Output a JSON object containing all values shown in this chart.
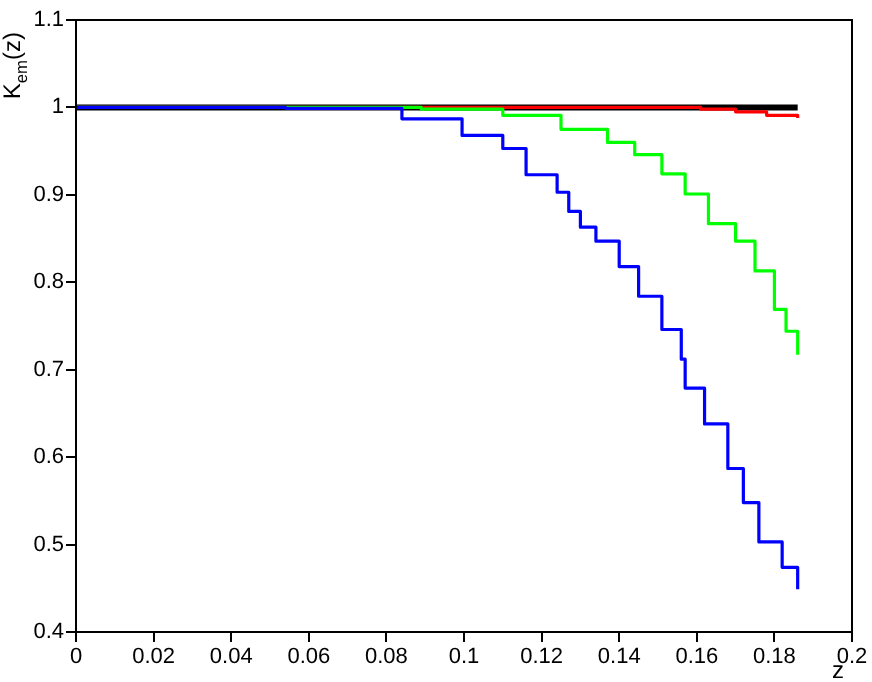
{
  "chart_data": {
    "type": "step",
    "xlabel": "z",
    "ylabel": "K$_{em}$(z)",
    "xlim": [
      0,
      0.2
    ],
    "ylim": [
      0.4,
      1.1
    ],
    "xticks": [
      0,
      0.02,
      0.04,
      0.06,
      0.08,
      0.1,
      0.12,
      0.14,
      0.16,
      0.18,
      0.2
    ],
    "yticks": [
      0.4,
      0.5,
      0.6,
      0.7,
      0.8,
      0.9,
      1,
      1.1
    ],
    "grid": false,
    "legend": false,
    "marker": "none",
    "series": [
      {
        "color": "#000000",
        "x": [
          0,
          0.186
        ],
        "values": [
          1,
          1
        ]
      },
      {
        "color": "#ff0000",
        "x": [
          0,
          0.161,
          0.17,
          0.178,
          0.186
        ],
        "values": [
          1,
          0.998,
          0.995,
          0.991,
          0.988
        ]
      },
      {
        "color": "#00ff00",
        "x": [
          0,
          0.089,
          0.11,
          0.125,
          0.137,
          0.144,
          0.151,
          0.157,
          0.163,
          0.17,
          0.175,
          0.18,
          0.183,
          0.186
        ],
        "values": [
          1,
          0.998,
          0.991,
          0.975,
          0.96,
          0.946,
          0.924,
          0.901,
          0.867,
          0.847,
          0.813,
          0.769,
          0.744,
          0.717
        ]
      },
      {
        "color": "#0000ff",
        "x": [
          0,
          0.054,
          0.084,
          0.0995,
          0.11,
          0.116,
          0.124,
          0.127,
          0.13,
          0.134,
          0.14,
          0.145,
          0.151,
          0.156,
          0.157,
          0.162,
          0.168,
          0.172,
          0.176,
          0.182,
          0.186
        ],
        "values": [
          1,
          0.999,
          0.987,
          0.968,
          0.953,
          0.923,
          0.903,
          0.881,
          0.863,
          0.847,
          0.818,
          0.784,
          0.746,
          0.712,
          0.679,
          0.638,
          0.587,
          0.548,
          0.503,
          0.474,
          0.449
        ]
      }
    ]
  }
}
